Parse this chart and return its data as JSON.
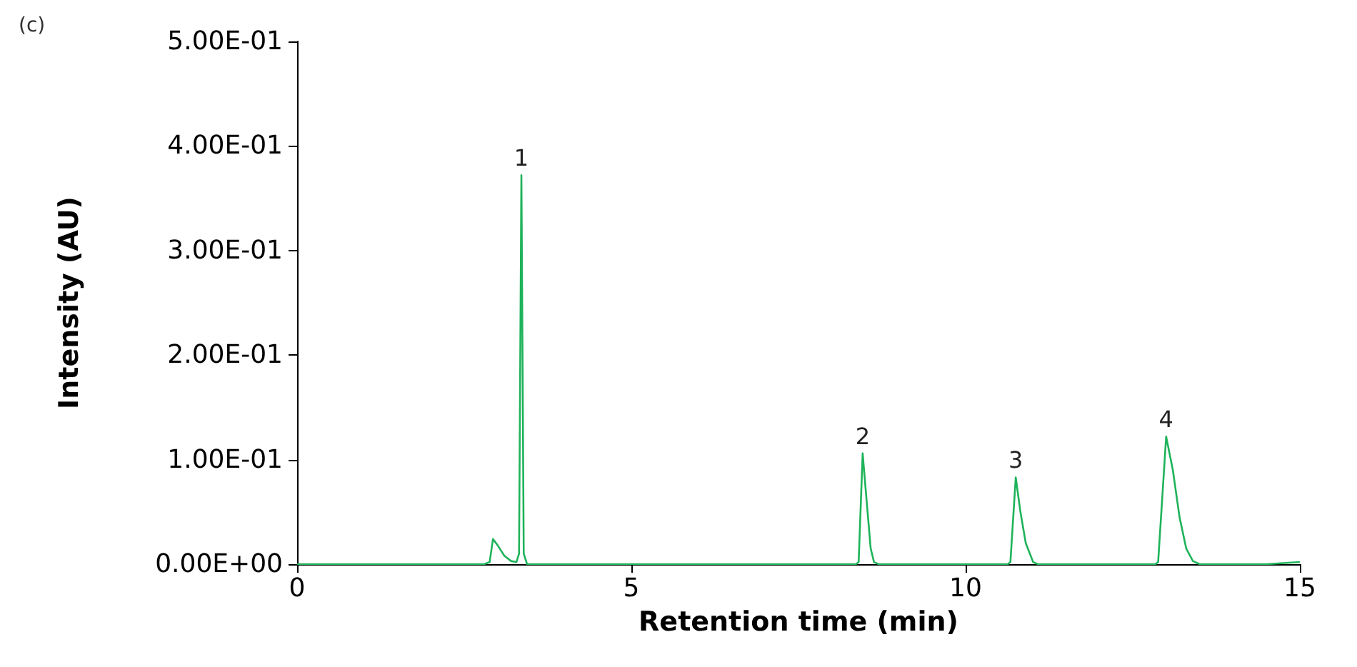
{
  "chart_data": {
    "type": "line",
    "title": "(c)",
    "xlabel": "Retention time (min)",
    "ylabel": "Intensity (AU)",
    "xlim": [
      0,
      15
    ],
    "xticks": [
      0,
      5,
      10,
      15
    ],
    "ylim": [
      0,
      0.5
    ],
    "yticks": [
      {
        "value": 0,
        "label": "0.00E+00"
      },
      {
        "value": 0.1,
        "label": "1.00E-01"
      },
      {
        "value": 0.2,
        "label": "2.00E-01"
      },
      {
        "value": 0.3,
        "label": "3.00E-01"
      },
      {
        "value": 0.4,
        "label": "4.00E-01"
      },
      {
        "value": 0.5,
        "label": "5.00E-01"
      }
    ],
    "grid": false,
    "marker": "none",
    "line_style": "solid",
    "series": [
      {
        "color": "#1fb35a",
        "x": [
          0,
          2.8,
          2.88,
          2.93,
          3.0,
          3.1,
          3.2,
          3.28,
          3.32,
          3.355,
          3.39,
          3.44,
          3.5,
          8.36,
          8.4,
          8.46,
          8.52,
          8.58,
          8.63,
          8.7,
          10.63,
          10.67,
          10.75,
          10.82,
          10.9,
          11.01,
          11.08,
          12.84,
          12.88,
          13.0,
          13.1,
          13.2,
          13.3,
          13.4,
          13.5,
          14.5,
          15
        ],
        "values": [
          0,
          0,
          0.002,
          0.024,
          0.018,
          0.008,
          0.003,
          0.002,
          0.01,
          0.372,
          0.01,
          0,
          0,
          0,
          0.002,
          0.106,
          0.06,
          0.015,
          0.002,
          0,
          0,
          0.002,
          0.083,
          0.05,
          0.02,
          0.002,
          0,
          0,
          0.002,
          0.122,
          0.09,
          0.045,
          0.015,
          0.003,
          0,
          0,
          0.002
        ]
      }
    ],
    "annotations": [
      {
        "text": "1",
        "x": 3.355,
        "y": 0.372
      },
      {
        "text": "2",
        "x": 8.46,
        "y": 0.106
      },
      {
        "text": "3",
        "x": 10.75,
        "y": 0.083
      },
      {
        "text": "4",
        "x": 13.0,
        "y": 0.122
      }
    ]
  }
}
